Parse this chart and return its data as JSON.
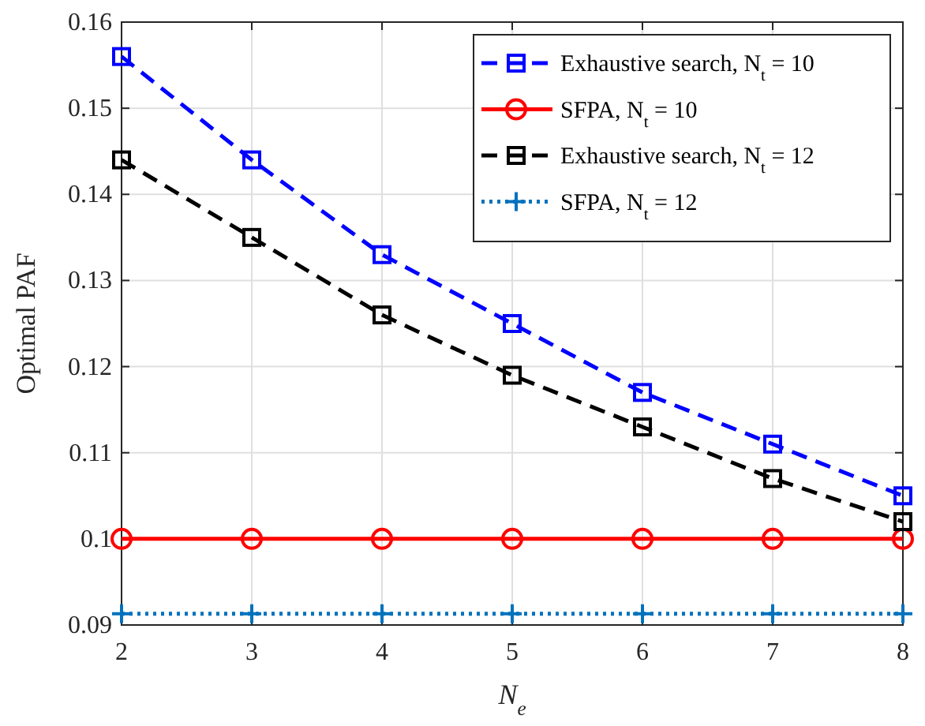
{
  "chart_data": {
    "type": "line",
    "xlabel": "N$_{e}$",
    "ylabel": "Optimal PAF",
    "x": [
      2,
      3,
      4,
      5,
      6,
      7,
      8
    ],
    "series": [
      {
        "name": "Exhaustive search, N$_{t}$ = 10",
        "color": "#0000ff",
        "marker": "square",
        "line_style": "dashed",
        "values": [
          0.156,
          0.144,
          0.133,
          0.125,
          0.117,
          0.111,
          0.105
        ]
      },
      {
        "name": "SFPA, N$_{t}$ = 10",
        "color": "#ff0000",
        "marker": "circle",
        "line_style": "solid",
        "values": [
          0.1,
          0.1,
          0.1,
          0.1,
          0.1,
          0.1,
          0.1
        ]
      },
      {
        "name": "Exhaustive search, N$_{t}$ = 12",
        "color": "#000000",
        "marker": "square",
        "line_style": "dashed",
        "values": [
          0.144,
          0.135,
          0.126,
          0.119,
          0.113,
          0.107,
          0.102
        ]
      },
      {
        "name": "SFPA, N$_{t}$ = 12",
        "color": "#0072bd",
        "marker": "cross",
        "line_style": "dotted",
        "values": [
          0.0913,
          0.0913,
          0.0913,
          0.0913,
          0.0913,
          0.0913,
          0.0913
        ]
      }
    ],
    "xlim": [
      2,
      8
    ],
    "xticks": [
      2,
      3,
      4,
      5,
      6,
      7,
      8
    ],
    "ylim": [
      0.09,
      0.16
    ],
    "yticks": [
      0.09,
      {
        "value": 0.1,
        "label": "0.1"
      },
      0.11,
      0.12,
      0.13,
      0.14,
      0.15,
      0.16
    ],
    "grid": true,
    "legend": "top right"
  }
}
